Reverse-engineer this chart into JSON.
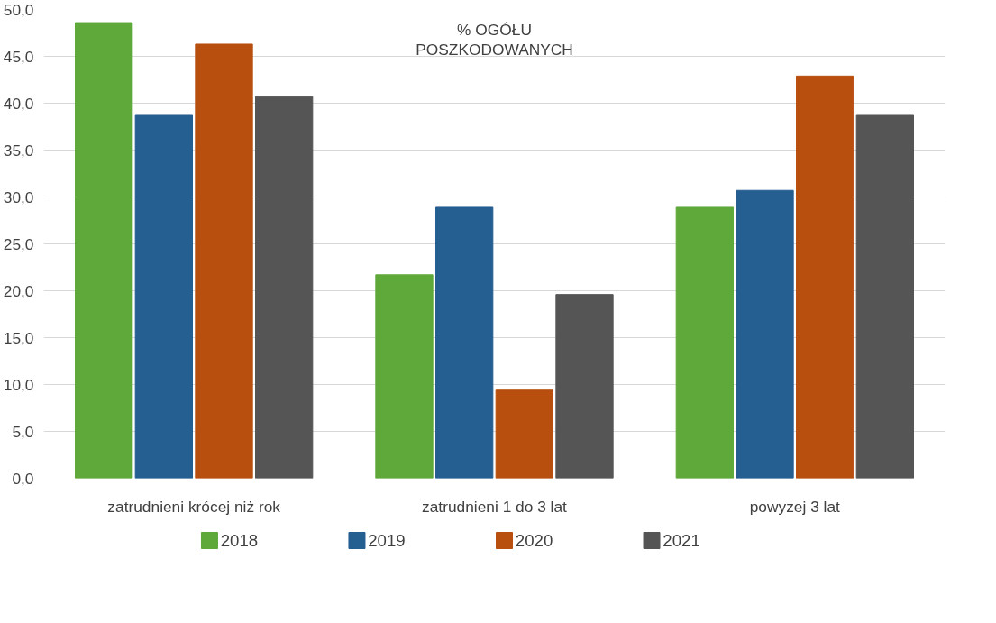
{
  "chart_data": {
    "type": "bar",
    "title": "% OGÓŁU\nPOSZKODOWANYCH",
    "categories": [
      "zatrudnieni krócej niż rok",
      "zatrudnieni 1 do 3 lat",
      "powyzej 3 lat"
    ],
    "series": [
      {
        "name": "2018",
        "color": "#5fa83a",
        "values": [
          48.6,
          21.7,
          28.9
        ]
      },
      {
        "name": "2019",
        "color": "#255e91",
        "values": [
          38.8,
          28.9,
          30.7
        ]
      },
      {
        "name": "2020",
        "color": "#b84f0f",
        "values": [
          46.3,
          9.4,
          42.9
        ]
      },
      {
        "name": "2021",
        "color": "#555555",
        "values": [
          40.7,
          19.6,
          38.8
        ]
      }
    ],
    "ylim": [
      0,
      50
    ],
    "yticks": [
      {
        "value": 0,
        "label": "0,0"
      },
      {
        "value": 5,
        "label": "5,0"
      },
      {
        "value": 10,
        "label": "10,0"
      },
      {
        "value": 15,
        "label": "15,0"
      },
      {
        "value": 20,
        "label": "20,0"
      },
      {
        "value": 25,
        "label": "25,0"
      },
      {
        "value": 30,
        "label": "30,0"
      },
      {
        "value": 35,
        "label": "35,0"
      },
      {
        "value": 40,
        "label": "40,0"
      },
      {
        "value": 45,
        "label": "45,0"
      },
      {
        "value": 50,
        "label": "50,0"
      }
    ],
    "grid": "y",
    "legend": "bottom"
  }
}
